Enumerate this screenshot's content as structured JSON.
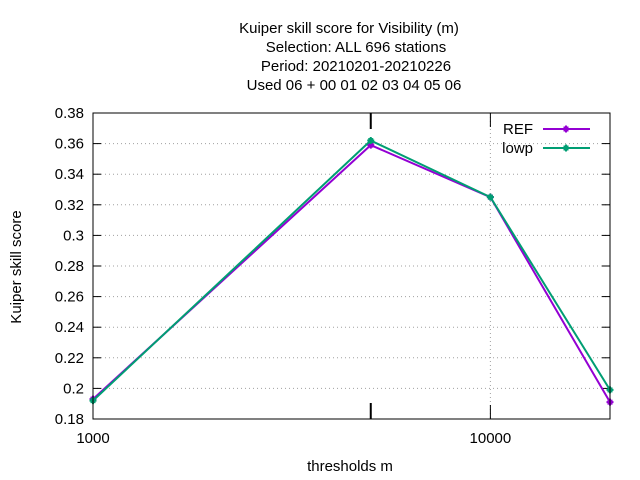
{
  "chart_data": {
    "type": "line",
    "title_lines": [
      "Kuiper skill score  for Visibility (m)",
      "Selection: ALL    696 stations",
      "Period: 20210201-20210226",
      "Used  06  + 00 01 02 03 04 05 06"
    ],
    "xlabel": "thresholds m",
    "ylabel": "Kuiper skill score",
    "x_scale": "log",
    "xlim": [
      1000,
      20000
    ],
    "ylim": [
      0.18,
      0.38
    ],
    "x_ticks": [
      1000,
      10000
    ],
    "x_tick_labels": [
      "1000",
      "10000"
    ],
    "y_ticks": [
      0.18,
      0.2,
      0.22,
      0.24,
      0.26,
      0.28,
      0.3,
      0.32,
      0.34,
      0.36,
      0.38
    ],
    "y_tick_labels": [
      "0.18",
      "0.2",
      "0.22",
      "0.24",
      "0.26",
      "0.28",
      "0.3",
      "0.32",
      "0.34",
      "0.36",
      "0.38"
    ],
    "grid": true,
    "legend_position": "top-right",
    "x": [
      1000,
      5000,
      10000,
      20000
    ],
    "series": [
      {
        "name": "REF",
        "color": "#9400d3",
        "values": [
          0.193,
          0.359,
          0.325,
          0.191
        ]
      },
      {
        "name": "lowp",
        "color": "#009e73",
        "values": [
          0.192,
          0.362,
          0.325,
          0.199
        ]
      }
    ]
  }
}
